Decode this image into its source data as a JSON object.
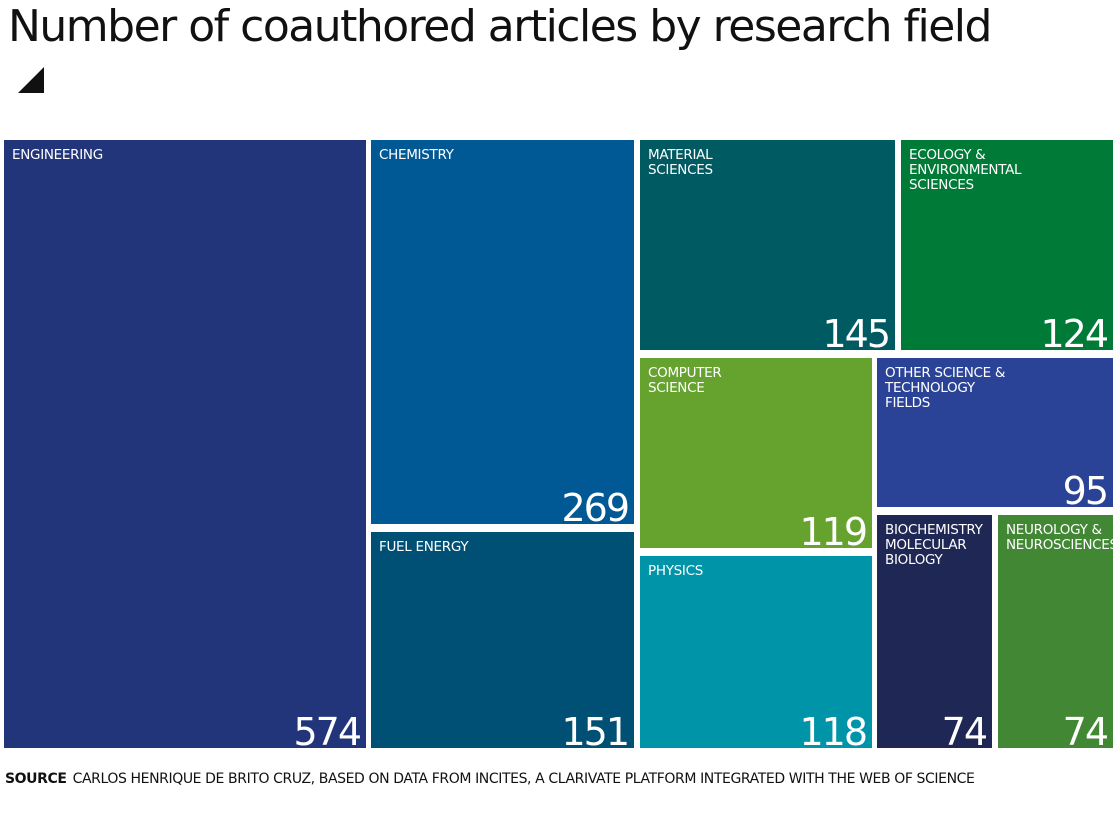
{
  "chart_data": {
    "type": "treemap",
    "title": "Number of coauthored articles by research field",
    "unit": "articles",
    "items": [
      {
        "label": "ENGINEERING",
        "value": 574,
        "color": "#22357a"
      },
      {
        "label": "CHEMISTRY",
        "value": 269,
        "color": "#005895"
      },
      {
        "label": "FUEL ENERGY",
        "value": 151,
        "color": "#004f74"
      },
      {
        "label": "MATERIAL\nSCIENCES",
        "value": 145,
        "color": "#005a62"
      },
      {
        "label": "ECOLOGY &\nENVIRONMENTAL\nSCIENCES",
        "value": 124,
        "color": "#007a37"
      },
      {
        "label": "COMPUTER\nSCIENCE",
        "value": 119,
        "color": "#65a22e"
      },
      {
        "label": "PHYSICS",
        "value": 118,
        "color": "#0094a8"
      },
      {
        "label": "OTHER SCIENCE &\nTECHNOLOGY\nFIELDS",
        "value": 95,
        "color": "#2b4397"
      },
      {
        "label": "BIOCHEMISTRY\nMOLECULAR\nBIOLOGY",
        "value": 74,
        "color": "#1f2755"
      },
      {
        "label": "NEUROLOGY &\nNEUROSCIENCES",
        "value": 74,
        "color": "#418734"
      }
    ]
  },
  "source": {
    "label": "SOURCE",
    "text": "CARLOS HENRIQUE DE BRITO CRUZ, BASED ON DATA FROM INCITES, A CLARIVATE PLATFORM INTEGRATED WITH THE WEB OF SCIENCE"
  }
}
